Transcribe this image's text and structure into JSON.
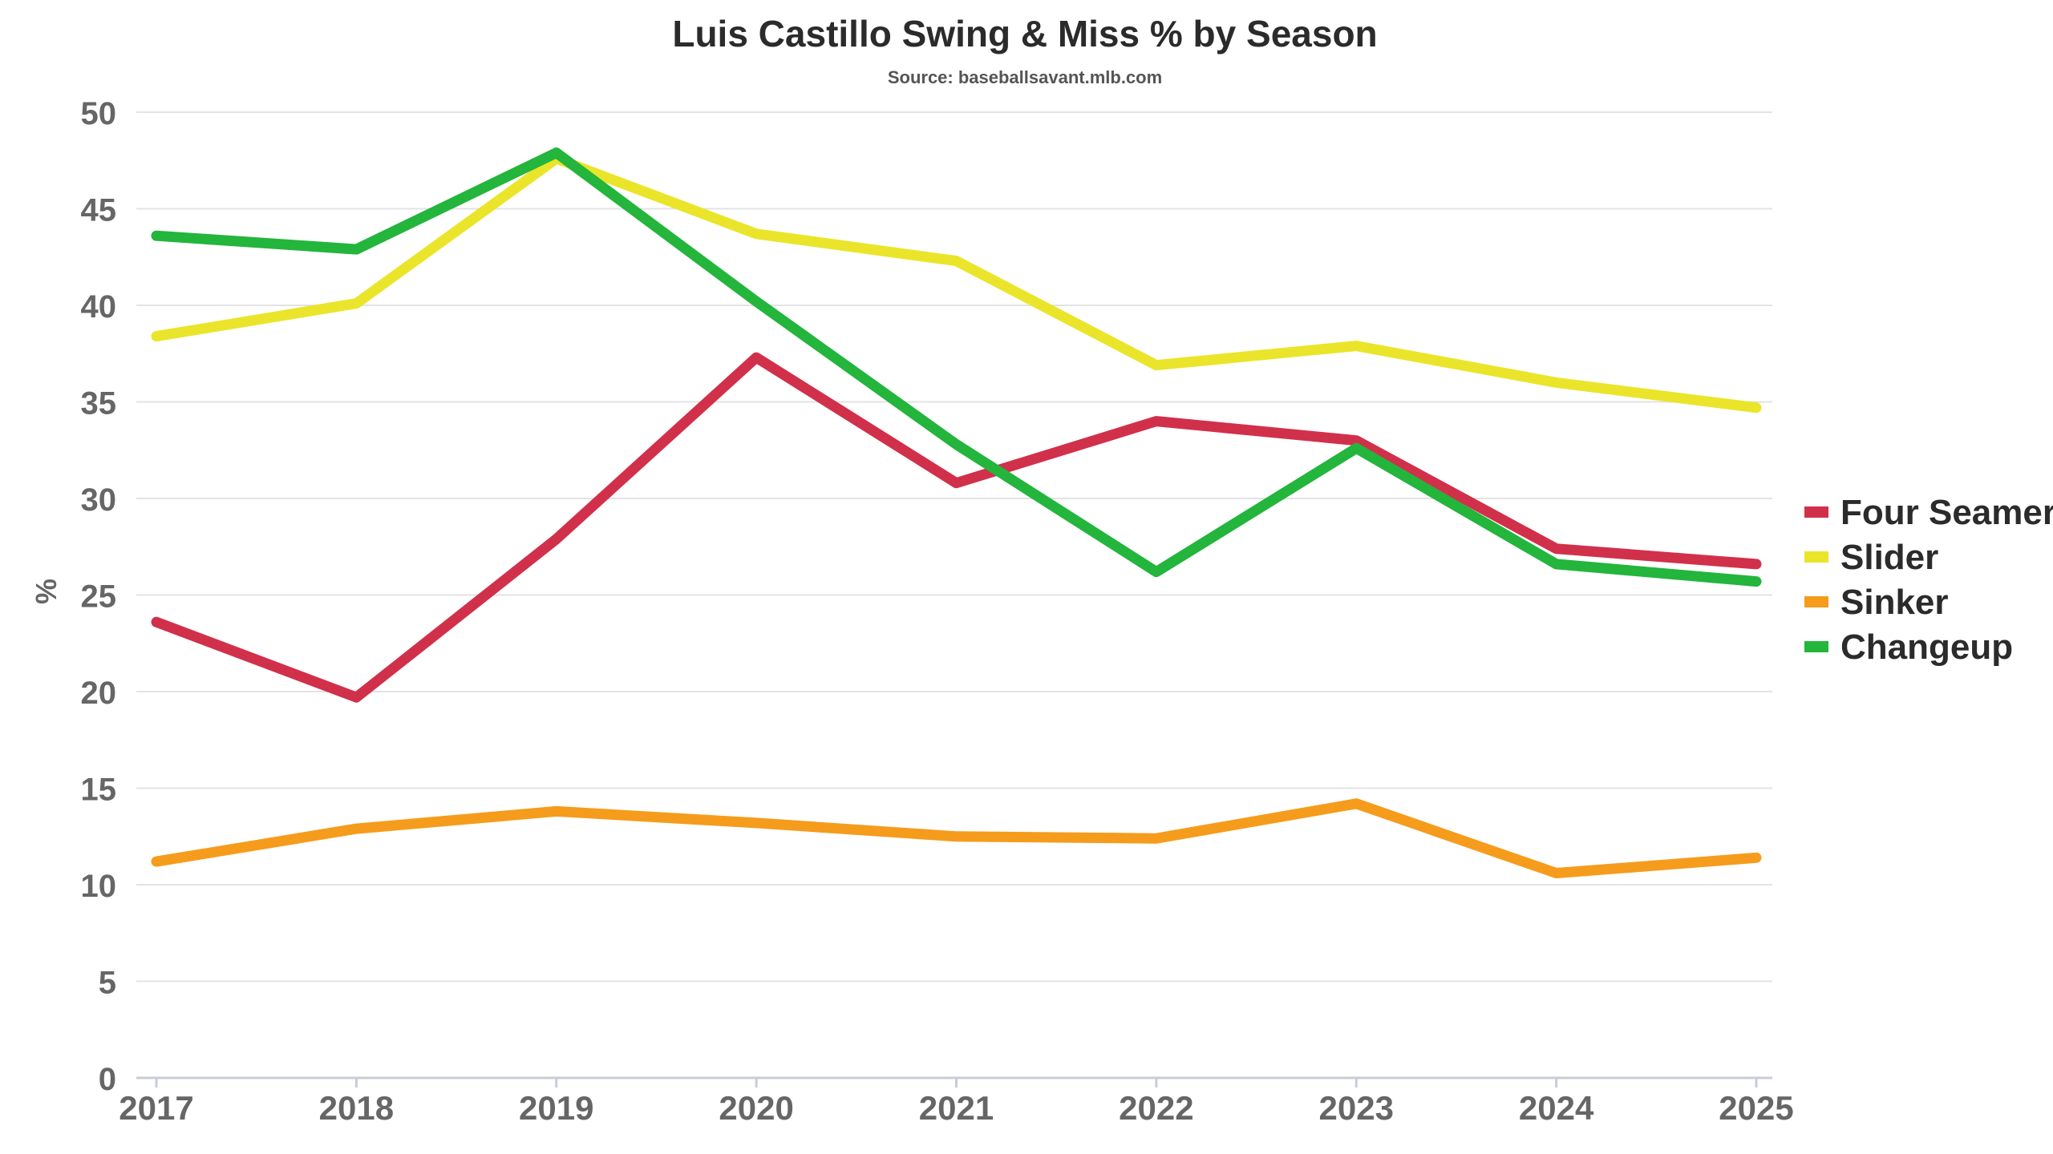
{
  "chart_data": {
    "type": "line",
    "title": "Luis Castillo Swing & Miss % by Season",
    "subtitle": "Source: baseballsavant.mlb.com",
    "xlabel": "",
    "ylabel": "%",
    "x": [
      "2017",
      "2018",
      "2019",
      "2020",
      "2021",
      "2022",
      "2023",
      "2024",
      "2025"
    ],
    "ylim": [
      0,
      50
    ],
    "yticks": [
      "0",
      "5",
      "10",
      "15",
      "20",
      "25",
      "30",
      "35",
      "40",
      "45",
      "50"
    ],
    "grid": "horizontal",
    "legend_position": "right",
    "series": [
      {
        "name": "Four Seamer",
        "color": "#d1304b",
        "values": [
          23.6,
          19.7,
          27.9,
          37.3,
          30.8,
          34.0,
          33.0,
          27.4,
          26.6
        ]
      },
      {
        "name": "Slider",
        "color": "#eae52a",
        "values": [
          38.4,
          40.1,
          47.6,
          43.7,
          42.3,
          36.9,
          37.9,
          36.0,
          34.7
        ]
      },
      {
        "name": "Sinker",
        "color": "#f59c1c",
        "values": [
          11.2,
          12.9,
          13.8,
          13.2,
          12.5,
          12.4,
          14.2,
          10.6,
          11.4
        ]
      },
      {
        "name": "Changeup",
        "color": "#23b53c",
        "values": [
          43.6,
          42.9,
          47.9,
          40.2,
          32.8,
          26.2,
          32.6,
          26.6,
          25.7
        ]
      }
    ]
  }
}
